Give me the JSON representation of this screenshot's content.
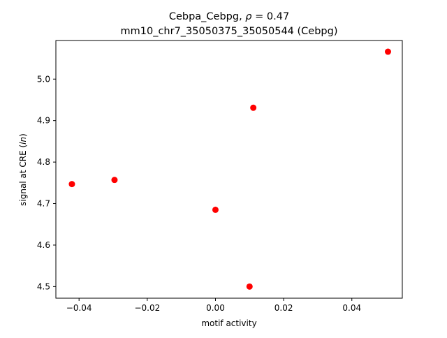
{
  "chart_data": {
    "type": "scatter",
    "title_line1": "Cebpa_Cebpg, ρ = 0.47",
    "title_line2": "mm10_chr7_35050375_35050544 (Cebpg)",
    "xlabel": "motif activity",
    "ylabel": "signal at CRE (ln)",
    "xlim": [
      -0.0468,
      0.0548
    ],
    "ylim": [
      4.472,
      5.093
    ],
    "x_ticks": [
      -0.04,
      -0.02,
      0.0,
      0.02,
      0.04
    ],
    "x_tick_labels": [
      "−0.04",
      "−0.02",
      "0.00",
      "0.02",
      "0.04"
    ],
    "y_ticks": [
      4.5,
      4.6,
      4.7,
      4.8,
      4.9,
      5.0
    ],
    "y_tick_labels": [
      "4.5",
      "4.6",
      "4.7",
      "4.8",
      "4.9",
      "5.0"
    ],
    "grid": false,
    "marker_color": "#ff0000",
    "points": [
      {
        "x": -0.0421,
        "y": 4.747
      },
      {
        "x": -0.0296,
        "y": 4.757
      },
      {
        "x": 0.0,
        "y": 4.685
      },
      {
        "x": 0.01,
        "y": 4.5
      },
      {
        "x": 0.0111,
        "y": 4.931
      },
      {
        "x": 0.0506,
        "y": 5.066
      }
    ]
  }
}
